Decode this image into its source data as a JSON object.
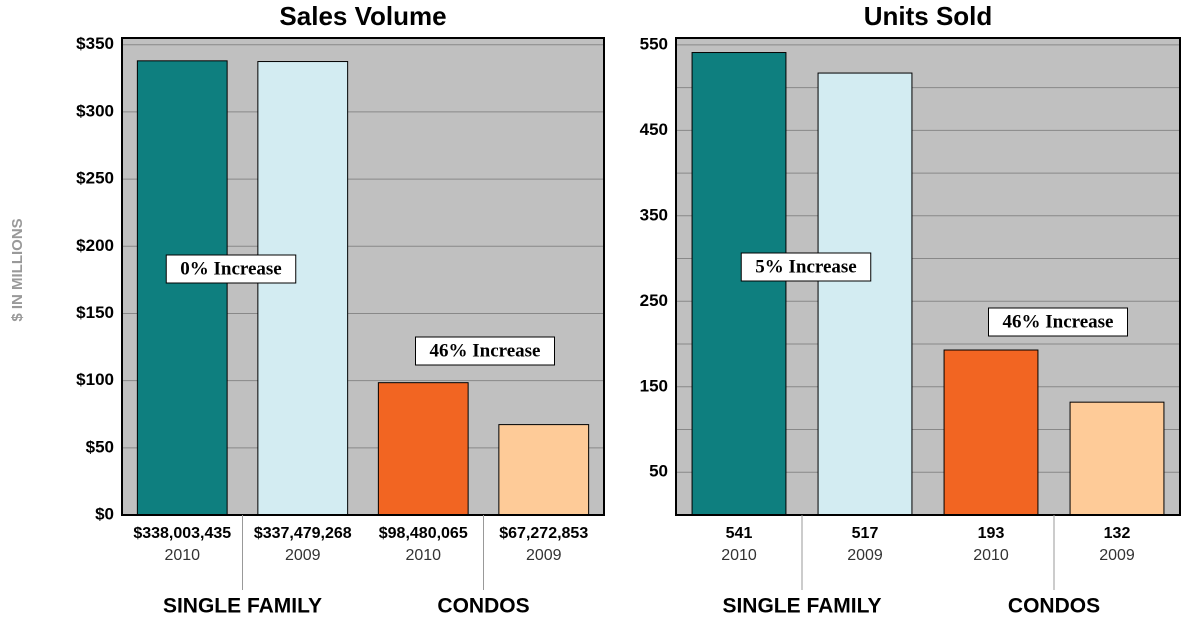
{
  "chart_data": [
    {
      "type": "bar",
      "title": "Sales Volume",
      "y_label": "$ IN MILLIONS",
      "categories": [
        "2010",
        "2009",
        "2010",
        "2009"
      ],
      "groups": [
        "SINGLE FAMILY",
        "CONDOS"
      ],
      "values": [
        338.003435,
        337.479268,
        98.480065,
        67.272853
      ],
      "value_labels": [
        "$338,003,435",
        "$337,479,268",
        "$98,480,065",
        "$67,272,853"
      ],
      "colors": [
        "#0e7f7f",
        "#d3ecf2",
        "#f26522",
        "#fecb98"
      ],
      "annotations": [
        "0% Increase",
        "46% Increase"
      ],
      "ylim": [
        0,
        355
      ],
      "yticks": [
        {
          "value": 0,
          "label": "$0"
        },
        {
          "value": 50,
          "label": "$50"
        },
        {
          "value": 100,
          "label": "$100"
        },
        {
          "value": 150,
          "label": "$150"
        },
        {
          "value": 200,
          "label": "$200"
        },
        {
          "value": 250,
          "label": "$250"
        },
        {
          "value": 300,
          "label": "$300"
        },
        {
          "value": 350,
          "label": "$350"
        }
      ],
      "grid": true
    },
    {
      "type": "bar",
      "title": "Units Sold",
      "categories": [
        "2010",
        "2009",
        "2010",
        "2009"
      ],
      "groups": [
        "SINGLE FAMILY",
        "CONDOS"
      ],
      "values": [
        541,
        517,
        193,
        132
      ],
      "colors": [
        "#0e7f7f",
        "#d3ecf2",
        "#f26522",
        "#fecb98"
      ],
      "annotations": [
        "5% Increase",
        "46% Increase"
      ],
      "ylim": [
        0,
        558
      ],
      "yticks": [
        50,
        150,
        250,
        350,
        450,
        550
      ],
      "yminorticks": [
        100,
        200,
        300,
        400,
        500
      ],
      "grid": true
    }
  ]
}
